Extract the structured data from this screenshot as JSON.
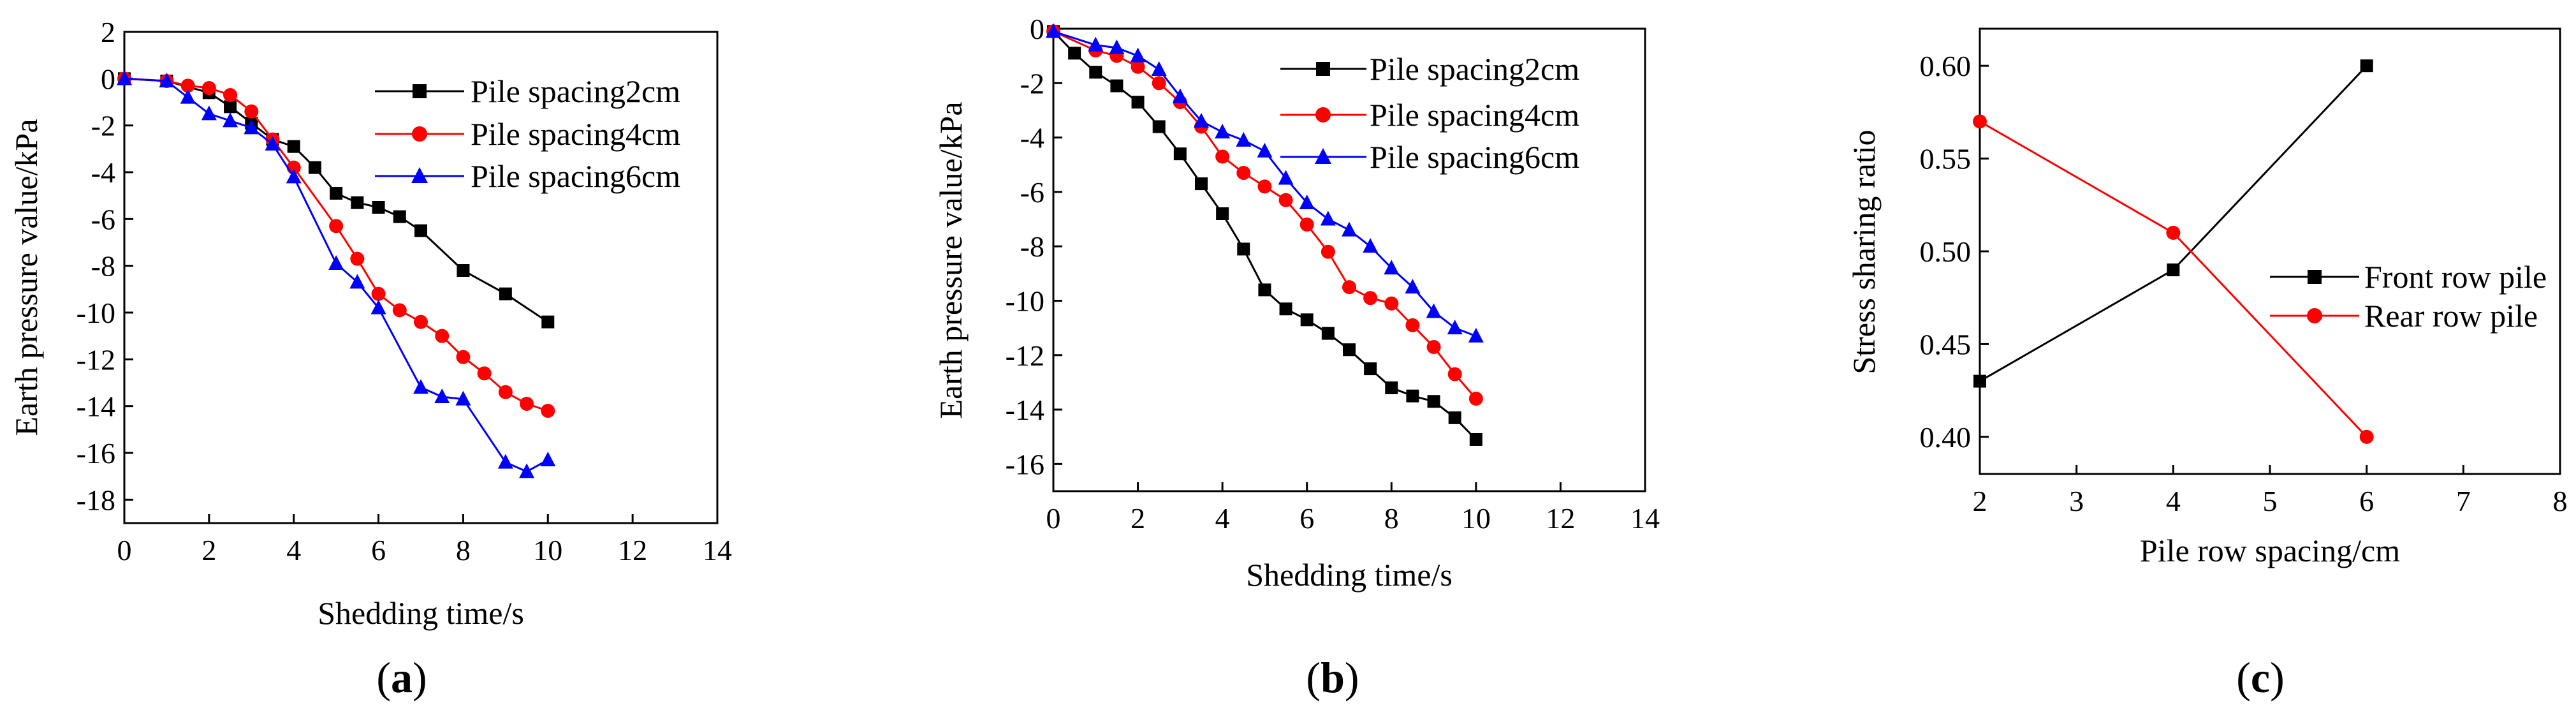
{
  "chart_data": [
    {
      "id": "a",
      "type": "line",
      "panel_label": "a",
      "xlabel": "Shedding time/s",
      "ylabel": "Earth pressure value/kPa",
      "xlim": [
        0,
        14
      ],
      "ylim": [
        -19,
        2
      ],
      "xticks": [
        0,
        2,
        4,
        6,
        8,
        10,
        12,
        14
      ],
      "yticks": [
        2,
        0,
        -2,
        -4,
        -6,
        -8,
        -10,
        -12,
        -14,
        -16,
        -18
      ],
      "legend_position": "top-right",
      "series": [
        {
          "name": "Pile spacing2cm",
          "color": "#000000",
          "marker": "square",
          "x": [
            0,
            1,
            2,
            2.5,
            3,
            3.5,
            4,
            4.5,
            5,
            5.5,
            6,
            6.5,
            7,
            8,
            9,
            10
          ],
          "y": [
            0,
            -0.1,
            -0.6,
            -1.2,
            -1.9,
            -2.6,
            -2.9,
            -3.8,
            -4.9,
            -5.3,
            -5.5,
            -5.9,
            -6.5,
            -8.2,
            -9.2,
            -10.4
          ]
        },
        {
          "name": "Pile spacing4cm",
          "color": "#ff0000",
          "marker": "circle",
          "x": [
            0,
            1,
            1.5,
            2,
            2.5,
            3,
            3.5,
            4,
            5,
            5.5,
            6,
            6.5,
            7,
            7.5,
            8,
            8.5,
            9,
            9.5,
            10
          ],
          "y": [
            0,
            -0.1,
            -0.3,
            -0.4,
            -0.7,
            -1.4,
            -2.6,
            -3.8,
            -6.3,
            -7.7,
            -9.2,
            -9.9,
            -10.4,
            -11.0,
            -11.9,
            -12.6,
            -13.4,
            -13.9,
            -14.2
          ]
        },
        {
          "name": "Pile spacing6cm",
          "color": "#0000ff",
          "marker": "triangle",
          "x": [
            0,
            1,
            1.5,
            2,
            2.5,
            3,
            3.5,
            4,
            5,
            5.5,
            6,
            7,
            7.5,
            8,
            9,
            9.5,
            10
          ],
          "y": [
            0,
            -0.1,
            -0.8,
            -1.5,
            -1.8,
            -2.1,
            -2.8,
            -4.2,
            -7.9,
            -8.7,
            -9.8,
            -13.2,
            -13.6,
            -13.7,
            -16.4,
            -16.8,
            -16.3
          ]
        }
      ]
    },
    {
      "id": "b",
      "type": "line",
      "panel_label": "b",
      "xlabel": "Shedding time/s",
      "ylabel": "Earth pressure value/kPa",
      "xlim": [
        0,
        14
      ],
      "ylim": [
        -17,
        0
      ],
      "xticks": [
        0,
        2,
        4,
        6,
        8,
        10,
        12,
        14
      ],
      "yticks": [
        0,
        -2,
        -4,
        -6,
        -8,
        -10,
        -12,
        -14,
        -16
      ],
      "legend_position": "top-right",
      "series": [
        {
          "name": "Pile spacing2cm",
          "color": "#000000",
          "marker": "square",
          "x": [
            0,
            0.5,
            1,
            1.5,
            2,
            2.5,
            3,
            3.5,
            4,
            4.5,
            5,
            5.5,
            6,
            6.5,
            7,
            7.5,
            8,
            8.5,
            9,
            9.5,
            10
          ],
          "y": [
            -0.1,
            -0.9,
            -1.6,
            -2.1,
            -2.7,
            -3.6,
            -4.6,
            -5.7,
            -6.8,
            -8.1,
            -9.6,
            -10.3,
            -10.7,
            -11.2,
            -11.8,
            -12.5,
            -13.2,
            -13.5,
            -13.7,
            -14.3,
            -15.1
          ]
        },
        {
          "name": "Pile spacing4cm",
          "color": "#ff0000",
          "marker": "circle",
          "x": [
            0,
            1,
            1.5,
            2,
            2.5,
            3,
            3.5,
            4,
            4.5,
            5,
            5.5,
            6,
            6.5,
            7,
            7.5,
            8,
            8.5,
            9,
            9.5,
            10
          ],
          "y": [
            -0.1,
            -0.8,
            -1.0,
            -1.4,
            -2.0,
            -2.7,
            -3.6,
            -4.7,
            -5.3,
            -5.8,
            -6.3,
            -7.2,
            -8.2,
            -9.5,
            -9.9,
            -10.1,
            -10.9,
            -11.7,
            -12.7,
            -13.6
          ]
        },
        {
          "name": "Pile spacing6cm",
          "color": "#0000ff",
          "marker": "triangle",
          "x": [
            0,
            1,
            1.5,
            2,
            2.5,
            3,
            3.5,
            4,
            4.5,
            5,
            5.5,
            6,
            6.5,
            7,
            7.5,
            8,
            8.5,
            9,
            9.5,
            10
          ],
          "y": [
            -0.1,
            -0.6,
            -0.7,
            -1.0,
            -1.5,
            -2.5,
            -3.4,
            -3.8,
            -4.1,
            -4.5,
            -5.5,
            -6.4,
            -7.0,
            -7.4,
            -8.0,
            -8.8,
            -9.5,
            -10.4,
            -11.0,
            -11.3
          ]
        }
      ]
    },
    {
      "id": "c",
      "type": "line",
      "panel_label": "c",
      "xlabel": "Pile row spacing/cm",
      "ylabel": "Stress sharing ratio",
      "xlim": [
        2,
        8
      ],
      "ylim": [
        0.38,
        0.62
      ],
      "xticks": [
        2,
        3,
        4,
        5,
        6,
        7,
        8
      ],
      "yticks": [
        0.4,
        0.45,
        0.5,
        0.55,
        0.6
      ],
      "legend_position": "right",
      "series": [
        {
          "name": "Front row pile",
          "color": "#000000",
          "marker": "square",
          "x": [
            2,
            4,
            6
          ],
          "y": [
            0.43,
            0.49,
            0.6
          ]
        },
        {
          "name": "Rear row pile",
          "color": "#ff0000",
          "marker": "circle",
          "x": [
            2,
            4,
            6
          ],
          "y": [
            0.57,
            0.51,
            0.4
          ]
        }
      ]
    }
  ]
}
